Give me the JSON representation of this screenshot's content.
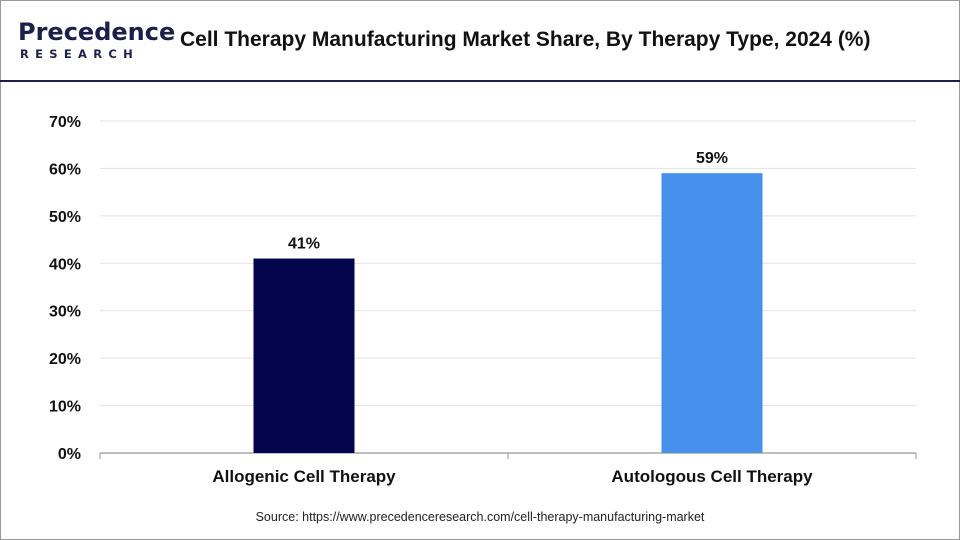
{
  "header": {
    "logo_name": "Precedence",
    "logo_sub": "RESEARCH",
    "title": "Cell Therapy Manufacturing Market Share, By Therapy Type, 2024 (%)"
  },
  "chart_data": {
    "type": "bar",
    "title": "Cell Therapy Manufacturing Market Share, By Therapy Type, 2024 (%)",
    "categories": [
      "Allogenic Cell Therapy",
      "Autologous Cell Therapy"
    ],
    "values": [
      41,
      59
    ],
    "value_labels": [
      "41%",
      "59%"
    ],
    "bar_colors": [
      "#03064c",
      "#4690ec"
    ],
    "ylim": [
      0,
      70
    ],
    "yticks": [
      0,
      10,
      20,
      30,
      40,
      50,
      60,
      70
    ],
    "ytick_labels": [
      "0%",
      "10%",
      "20%",
      "30%",
      "40%",
      "50%",
      "60%",
      "70%"
    ],
    "xlabel": "",
    "ylabel": "",
    "grid": true
  },
  "footer": {
    "source": "Source: https://www.precedenceresearch.com/cell-therapy-manufacturing-market"
  }
}
